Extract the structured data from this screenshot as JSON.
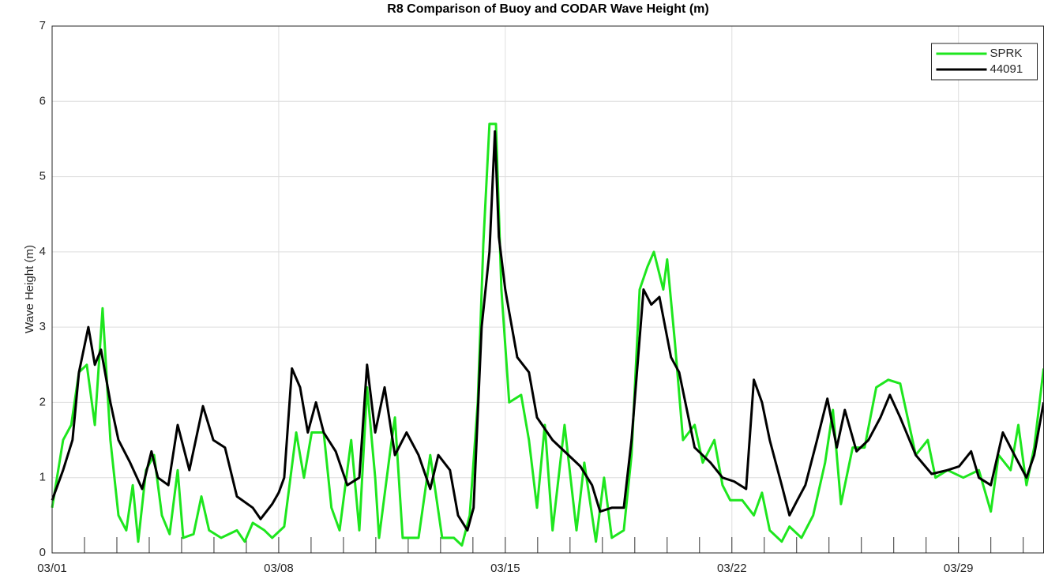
{
  "chart_data": {
    "type": "line",
    "title": "R8 Comparison of Buoy and CODAR Wave Height (m)",
    "y_label": "Wave Height (m)",
    "xlim": [
      0,
      30.63
    ],
    "xticks": [
      {
        "value": 0,
        "label": "03/01"
      },
      {
        "value": 7,
        "label": "03/08"
      },
      {
        "value": 14,
        "label": "03/15"
      },
      {
        "value": 21,
        "label": "03/22"
      },
      {
        "value": 28,
        "label": "03/29"
      }
    ],
    "xminorticks": [
      0,
      1,
      2,
      3,
      4,
      5,
      6,
      7,
      8,
      9,
      10,
      11,
      12,
      13,
      14,
      15,
      16,
      17,
      18,
      19,
      20,
      21,
      22,
      23,
      24,
      25,
      26,
      27,
      28,
      29,
      30
    ],
    "ylim": [
      0,
      7
    ],
    "yticks": [
      0,
      1,
      2,
      3,
      4,
      5,
      6,
      7
    ],
    "grid": true,
    "legend": "upper right",
    "series": [
      {
        "name": "SPRK",
        "color": "#1ee61e",
        "x": [
          0,
          0.34,
          0.59,
          0.83,
          1.07,
          1.32,
          1.56,
          1.8,
          2.05,
          2.29,
          2.49,
          2.66,
          2.9,
          3.15,
          3.39,
          3.63,
          3.88,
          4.05,
          4.37,
          4.61,
          4.85,
          5.22,
          5.71,
          5.95,
          6.2,
          6.56,
          6.8,
          7.17,
          7.54,
          7.78,
          8.02,
          8.39,
          8.63,
          8.88,
          9.24,
          9.49,
          9.73,
          9.98,
          10.1,
          10.46,
          10.59,
          10.83,
          11.32,
          11.68,
          12.05,
          12.41,
          12.66,
          12.9,
          13.15,
          13.32,
          13.51,
          13.71,
          13.88,
          14.12,
          14.49,
          14.73,
          14.98,
          15.22,
          15.46,
          15.83,
          16.2,
          16.44,
          16.8,
          17.05,
          17.29,
          17.66,
          17.9,
          18.15,
          18.39,
          18.59,
          18.88,
          19.0,
          19.24,
          19.49,
          19.85,
          20.1,
          20.46,
          20.71,
          20.95,
          21.32,
          21.68,
          21.93,
          22.17,
          22.54,
          22.78,
          23.15,
          23.51,
          23.88,
          24.12,
          24.37,
          24.73,
          25.1,
          25.46,
          25.83,
          26.2,
          26.68,
          27.05,
          27.29,
          27.66,
          28.15,
          28.63,
          29.0,
          29.24,
          29.61,
          29.85,
          30.1,
          30.34,
          30.63
        ],
        "values": [
          0.6,
          1.5,
          1.7,
          2.4,
          2.5,
          1.7,
          3.25,
          1.5,
          0.5,
          0.3,
          0.9,
          0.15,
          1.1,
          1.3,
          0.5,
          0.25,
          1.1,
          0.2,
          0.25,
          0.75,
          0.3,
          0.2,
          0.3,
          0.15,
          0.4,
          0.3,
          0.2,
          0.35,
          1.6,
          1.0,
          1.6,
          1.6,
          0.6,
          0.3,
          1.5,
          0.3,
          2.2,
          1.0,
          0.2,
          1.4,
          1.8,
          0.2,
          0.2,
          1.3,
          0.2,
          0.2,
          0.1,
          0.5,
          2.0,
          4.1,
          5.7,
          5.7,
          3.5,
          2.0,
          2.1,
          1.5,
          0.6,
          1.7,
          0.3,
          1.7,
          0.3,
          1.2,
          0.15,
          1.0,
          0.2,
          0.3,
          1.3,
          3.5,
          3.8,
          4.0,
          3.5,
          3.9,
          2.8,
          1.5,
          1.7,
          1.2,
          1.5,
          0.9,
          0.7,
          0.7,
          0.5,
          0.8,
          0.3,
          0.15,
          0.35,
          0.2,
          0.5,
          1.2,
          1.9,
          0.65,
          1.4,
          1.4,
          2.2,
          2.3,
          2.25,
          1.3,
          1.5,
          1.0,
          1.1,
          1.0,
          1.1,
          0.55,
          1.3,
          1.1,
          1.7,
          0.9,
          1.4,
          2.45
        ]
      },
      {
        "name": "44091",
        "color": "#000000",
        "x": [
          0,
          0.34,
          0.63,
          0.83,
          1.12,
          1.32,
          1.51,
          1.8,
          2.05,
          2.41,
          2.78,
          3.07,
          3.27,
          3.59,
          3.88,
          4.24,
          4.66,
          4.98,
          5.34,
          5.71,
          6.2,
          6.44,
          6.8,
          7.0,
          7.17,
          7.41,
          7.66,
          7.9,
          8.15,
          8.39,
          8.76,
          9.12,
          9.49,
          9.73,
          9.98,
          10.27,
          10.59,
          10.95,
          11.32,
          11.68,
          11.93,
          12.29,
          12.54,
          12.83,
          13.02,
          13.27,
          13.51,
          13.68,
          13.8,
          14.0,
          14.12,
          14.37,
          14.73,
          14.98,
          15.46,
          15.95,
          16.32,
          16.68,
          16.93,
          17.29,
          17.66,
          17.9,
          18.27,
          18.51,
          18.76,
          19.12,
          19.37,
          19.85,
          20.34,
          20.71,
          21.07,
          21.44,
          21.68,
          21.93,
          22.17,
          22.54,
          22.78,
          23.02,
          23.27,
          23.63,
          23.95,
          24.24,
          24.49,
          24.85,
          25.22,
          25.59,
          25.88,
          26.2,
          26.68,
          27.17,
          27.66,
          28.02,
          28.39,
          28.63,
          29.0,
          29.37,
          29.73,
          30.1,
          30.34,
          30.63
        ],
        "values": [
          0.7,
          1.1,
          1.5,
          2.4,
          3.0,
          2.5,
          2.7,
          2.0,
          1.5,
          1.2,
          0.85,
          1.35,
          1.0,
          0.9,
          1.7,
          1.1,
          1.95,
          1.5,
          1.4,
          0.75,
          0.6,
          0.45,
          0.65,
          0.8,
          1.0,
          2.45,
          2.2,
          1.6,
          2.0,
          1.6,
          1.35,
          0.9,
          1.0,
          2.5,
          1.6,
          2.2,
          1.3,
          1.6,
          1.3,
          0.85,
          1.3,
          1.1,
          0.5,
          0.3,
          0.6,
          3.0,
          4.0,
          5.6,
          4.2,
          3.5,
          3.2,
          2.6,
          2.4,
          1.8,
          1.5,
          1.3,
          1.15,
          0.9,
          0.55,
          0.6,
          0.6,
          1.5,
          3.5,
          3.3,
          3.4,
          2.6,
          2.4,
          1.4,
          1.2,
          1.0,
          0.95,
          0.85,
          2.3,
          2.0,
          1.5,
          0.9,
          0.5,
          0.7,
          0.9,
          1.5,
          2.05,
          1.4,
          1.9,
          1.35,
          1.5,
          1.8,
          2.1,
          1.8,
          1.3,
          1.05,
          1.1,
          1.15,
          1.35,
          1.0,
          0.9,
          1.6,
          1.3,
          1.0,
          1.3,
          2.0
        ]
      }
    ]
  }
}
